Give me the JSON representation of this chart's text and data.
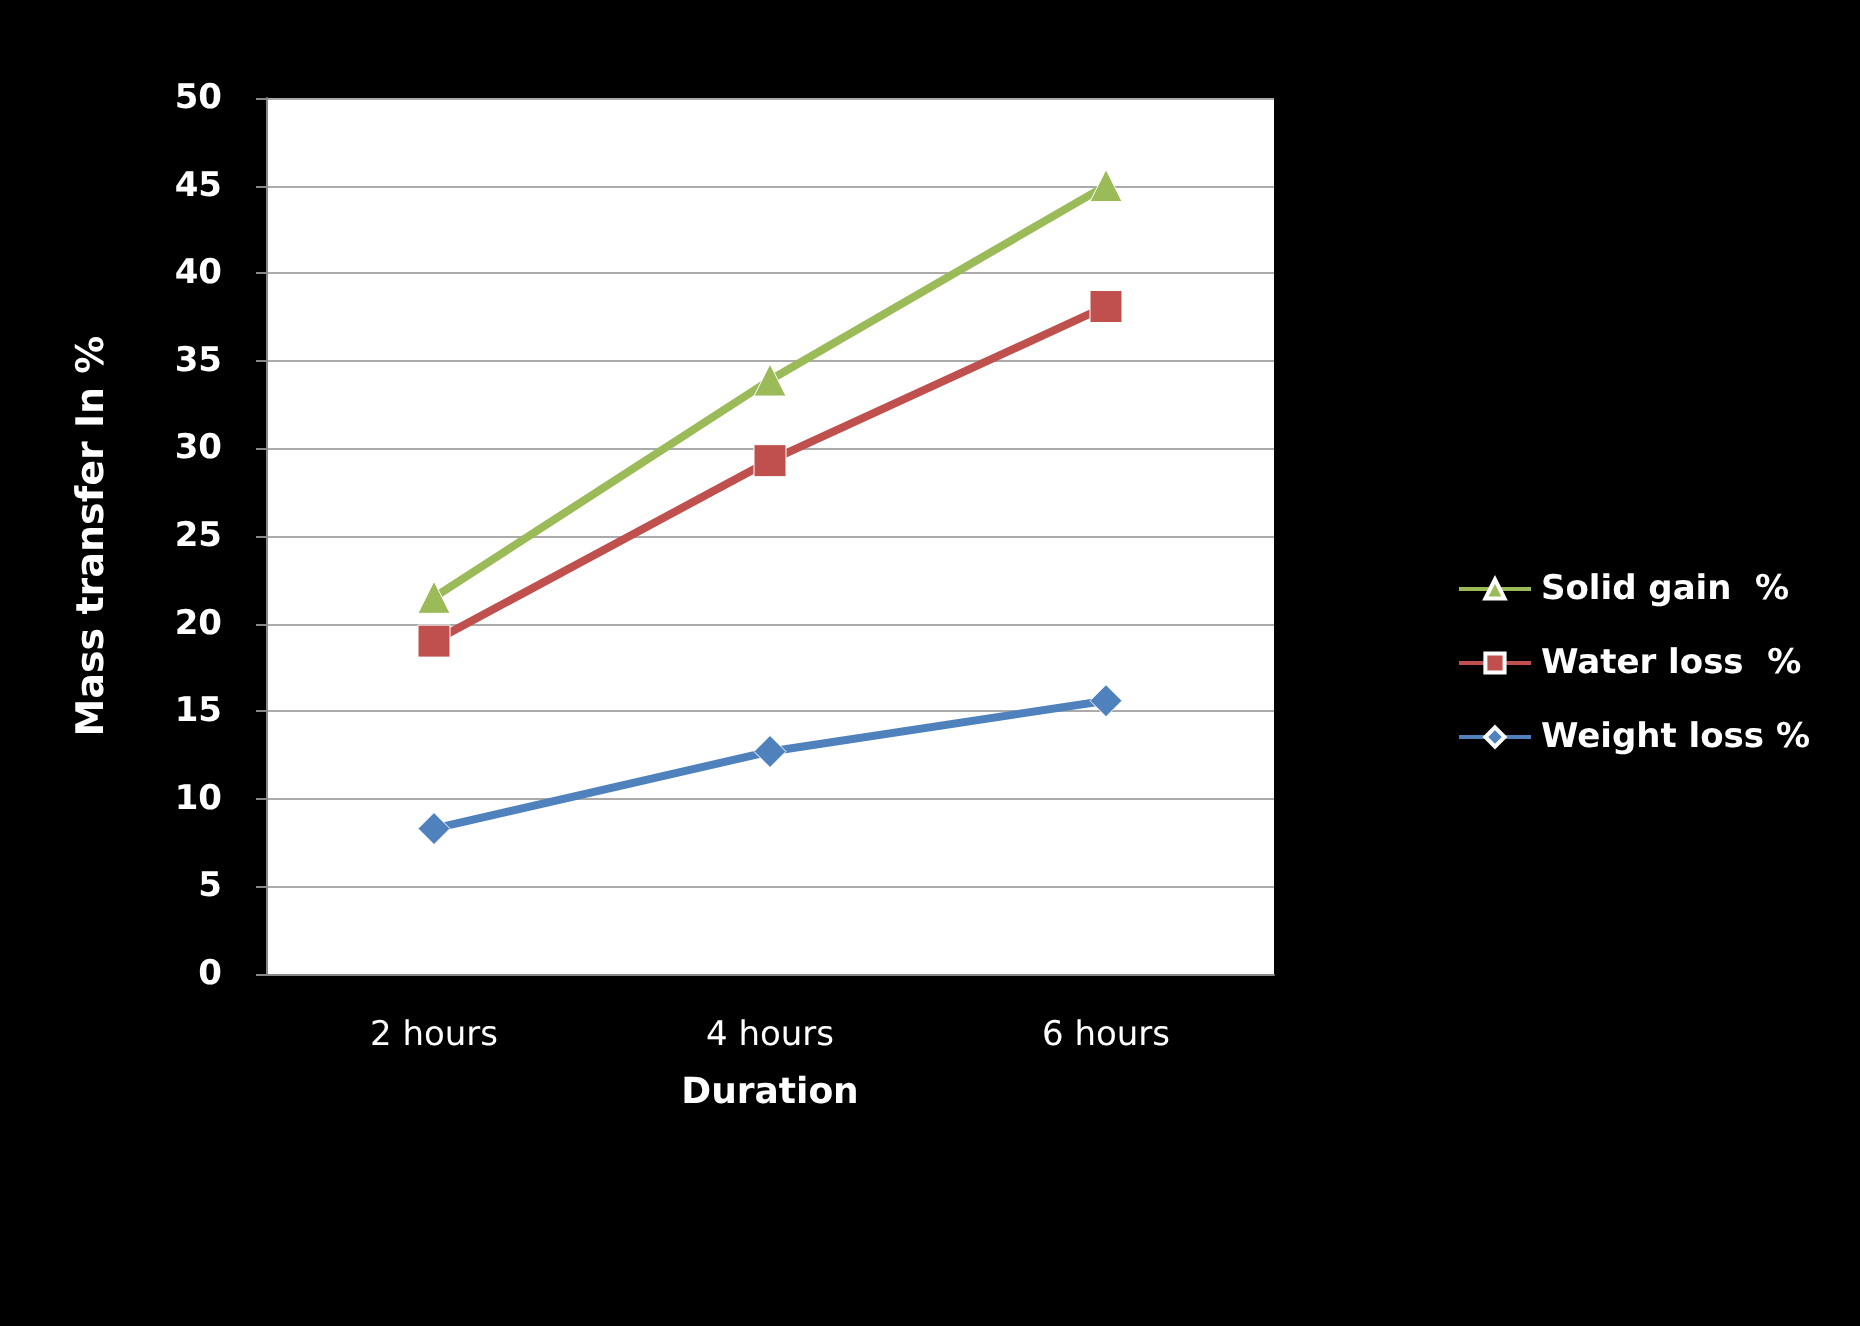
{
  "chart_data": {
    "type": "line",
    "xlabel": "Duration",
    "ylabel": "Mass transfer In %",
    "categories": [
      "2 hours",
      "4 hours",
      "6 hours"
    ],
    "series": [
      {
        "name": "Solid gain  %",
        "color": "#9bbb59",
        "marker": "triangle",
        "values": [
          21.5,
          33.9,
          45
        ]
      },
      {
        "name": "Water loss  %",
        "color": "#c0504d",
        "marker": "square",
        "values": [
          19,
          29.3,
          38.1
        ]
      },
      {
        "name": "Weight loss %",
        "color": "#4f81bd",
        "marker": "diamond",
        "values": [
          8.3,
          12.7,
          15.6
        ]
      }
    ],
    "ylim": [
      0,
      50
    ],
    "yticks": [
      0,
      5,
      10,
      15,
      20,
      25,
      30,
      35,
      40,
      45,
      50
    ],
    "grid": "y",
    "legend": "right"
  }
}
